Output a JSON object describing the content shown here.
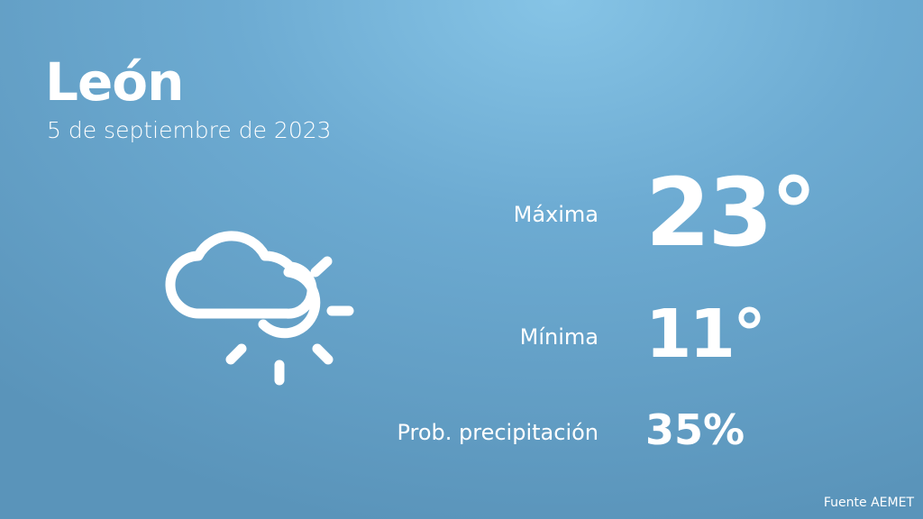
{
  "location": {
    "city": "León",
    "date": "5 de septiembre de 2023"
  },
  "forecast": {
    "icon": "cloud-sun-icon",
    "max_label": "Máxima",
    "max_value": "23°",
    "min_label": "Mínima",
    "min_value": "11°",
    "precip_label": "Prob. precipitación",
    "precip_value": "35%"
  },
  "footer": {
    "source": "Fuente AEMET"
  }
}
